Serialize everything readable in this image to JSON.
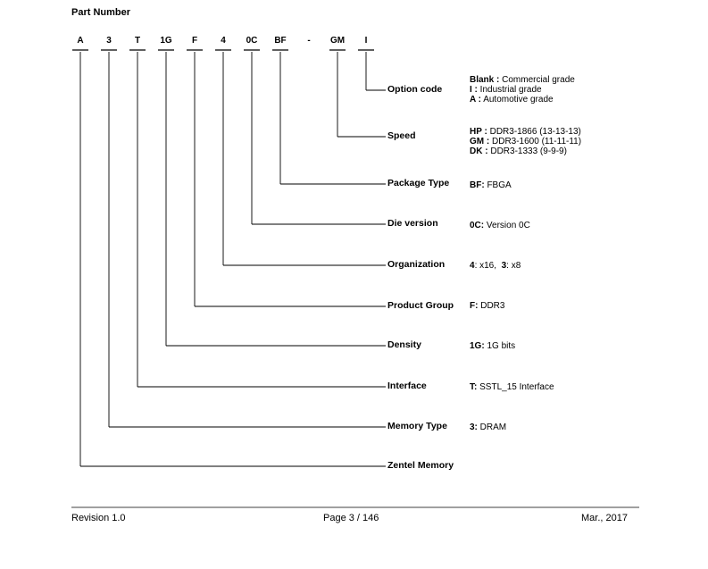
{
  "title": "Part Number",
  "segments": [
    "A",
    "3",
    "T",
    "1G",
    "F",
    "4",
    "0C",
    "BF",
    "-",
    "GM",
    "I"
  ],
  "fields": [
    {
      "label": "Option code",
      "desc": [
        {
          "code": "Blank :",
          "text": " Commercial grade"
        },
        {
          "code": "I :",
          "text": " Industrial grade"
        },
        {
          "code": "A :",
          "text": " Automotive grade"
        }
      ]
    },
    {
      "label": "Speed",
      "desc": [
        {
          "code": "HP :",
          "text": " DDR3-1866 (13-13-13)"
        },
        {
          "code": "GM :",
          "text": " DDR3-1600 (11-11-11)"
        },
        {
          "code": "DK :",
          "text": " DDR3-1333 (9-9-9)"
        }
      ]
    },
    {
      "label": "Package Type",
      "desc": [
        {
          "code": "BF:",
          "text": " FBGA"
        }
      ]
    },
    {
      "label": "Die version",
      "desc": [
        {
          "code": "0C:",
          "text": " Version 0C"
        }
      ]
    },
    {
      "label": "Organization",
      "desc": [
        {
          "code": "4",
          "text": ": x16,  "
        },
        {
          "code": "3",
          "text": ": x8"
        }
      ]
    },
    {
      "label": "Product Group",
      "desc": [
        {
          "code": "F:",
          "text": " DDR3"
        }
      ]
    },
    {
      "label": "Density",
      "desc": [
        {
          "code": "1G:",
          "text": " 1G bits"
        }
      ]
    },
    {
      "label": "Interface",
      "desc": [
        {
          "code": "T:",
          "text": " SSTL_15 Interface"
        }
      ]
    },
    {
      "label": "Memory Type",
      "desc": [
        {
          "code": "3:",
          "text": " DRAM"
        }
      ]
    },
    {
      "label": "Zentel Memory",
      "desc": []
    }
  ],
  "footer": {
    "revision": "Revision 1.0",
    "page": "Page 3 / 146",
    "date": "Mar., 2017"
  }
}
